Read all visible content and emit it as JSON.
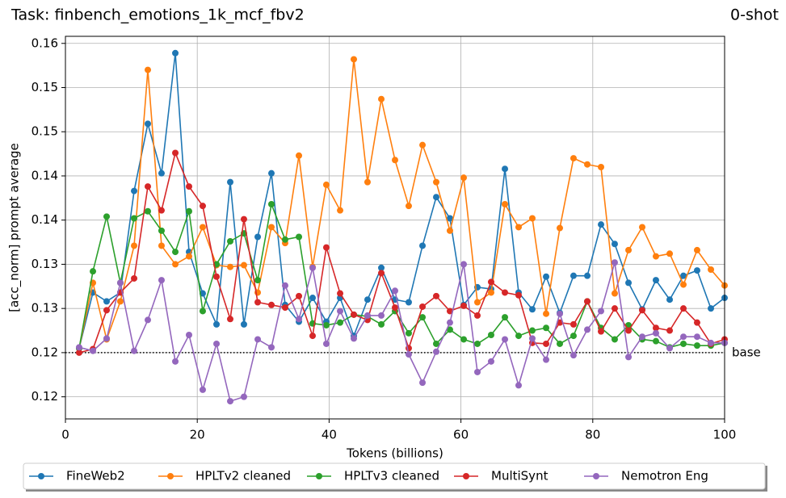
{
  "chart_data": {
    "type": "line",
    "title": "Task: finbench_emotions_1k_mcf_fbv2",
    "subtitle": "0-shot",
    "x_label": "Tokens (billions)",
    "y_label": "[acc_norm] prompt average",
    "x": [
      2.08,
      4.17,
      6.25,
      8.33,
      10.42,
      12.5,
      14.58,
      16.67,
      18.75,
      20.83,
      22.92,
      25,
      27.08,
      29.17,
      31.25,
      33.33,
      35.42,
      37.5,
      39.58,
      41.67,
      43.75,
      45.83,
      47.92,
      50,
      52.08,
      54.17,
      56.25,
      58.33,
      60.42,
      62.5,
      64.58,
      66.67,
      68.75,
      70.83,
      72.92,
      75,
      77.08,
      79.17,
      81.25,
      83.33,
      85.42,
      87.5,
      89.58,
      91.67,
      93.75,
      95.83,
      97.92,
      100
    ],
    "series": [
      {
        "name": "FineWeb2",
        "color": "#1f77b4",
        "values": [
          0.1205,
          0.1268,
          0.1258,
          0.1268,
          0.1383,
          0.1459,
          0.1403,
          0.1539,
          0.1314,
          0.1267,
          0.1232,
          0.1393,
          0.1232,
          0.1331,
          0.1403,
          0.1254,
          0.1235,
          0.1262,
          0.1235,
          0.1262,
          0.1219,
          0.126,
          0.1296,
          0.126,
          0.1257,
          0.1321,
          0.1376,
          0.1352,
          0.1254,
          0.1274,
          0.1272,
          0.1408,
          0.1268,
          0.1249,
          0.1286,
          0.1245,
          0.1287,
          0.1287,
          0.1345,
          0.1323,
          0.1279,
          0.1249,
          0.1282,
          0.126,
          0.1287,
          0.1293,
          0.125,
          0.1262
        ]
      },
      {
        "name": "HPLTv2 cleaned",
        "color": "#ff7f0e",
        "values": [
          0.1205,
          0.1279,
          0.1215,
          0.1258,
          0.1321,
          0.152,
          0.1321,
          0.13,
          0.1309,
          0.1342,
          0.1299,
          0.1297,
          0.1299,
          0.1268,
          0.1342,
          0.1324,
          0.1423,
          0.1297,
          0.139,
          0.1361,
          0.1532,
          0.1393,
          0.1487,
          0.1418,
          0.1366,
          0.1435,
          0.1393,
          0.1338,
          0.1398,
          0.1257,
          0.1268,
          0.1368,
          0.1342,
          0.1352,
          0.1244,
          0.1341,
          0.142,
          0.1413,
          0.141,
          0.1267,
          0.1316,
          0.1342,
          0.1309,
          0.1312,
          0.1277,
          0.1316,
          0.1294,
          0.1276
        ]
      },
      {
        "name": "HPLTv3 cleaned",
        "color": "#2ca02c",
        "values": [
          0.1205,
          0.1292,
          0.1354,
          0.1279,
          0.1352,
          0.136,
          0.1338,
          0.1314,
          0.136,
          0.1247,
          0.13,
          0.1326,
          0.1335,
          0.1282,
          0.1368,
          0.1328,
          0.1331,
          0.1233,
          0.1231,
          0.1234,
          0.1243,
          0.1241,
          0.1232,
          0.1247,
          0.1222,
          0.124,
          0.121,
          0.1226,
          0.1215,
          0.121,
          0.122,
          0.124,
          0.1219,
          0.1225,
          0.1228,
          0.121,
          0.1219,
          0.1258,
          0.1228,
          0.1215,
          0.1231,
          0.1215,
          0.1213,
          0.1206,
          0.121,
          0.1208,
          0.1208,
          0.1211
        ]
      },
      {
        "name": "MultiSynt",
        "color": "#d62728",
        "values": [
          0.12,
          0.1204,
          0.1248,
          0.1268,
          0.1284,
          0.1388,
          0.1361,
          0.1426,
          0.1388,
          0.1366,
          0.1286,
          0.1238,
          0.1351,
          0.1257,
          0.1254,
          0.1251,
          0.1264,
          0.1219,
          0.1319,
          0.1267,
          0.1243,
          0.1237,
          0.129,
          0.1251,
          0.1205,
          0.1252,
          0.1264,
          0.1247,
          0.1253,
          0.1242,
          0.128,
          0.1268,
          0.1265,
          0.1211,
          0.121,
          0.1234,
          0.1232,
          0.1258,
          0.1224,
          0.125,
          0.1225,
          0.1248,
          0.1228,
          0.1225,
          0.125,
          0.1234,
          0.121,
          0.1215
        ]
      },
      {
        "name": "Nemotron Eng",
        "color": "#9467bd",
        "values": [
          0.1206,
          0.1202,
          0.1216,
          0.1279,
          0.1202,
          0.1237,
          0.1282,
          0.119,
          0.122,
          0.1158,
          0.121,
          0.1145,
          0.115,
          0.1215,
          0.1206,
          0.1276,
          0.1238,
          0.1296,
          0.121,
          0.1247,
          0.1216,
          0.1242,
          0.1242,
          0.127,
          0.1198,
          0.1166,
          0.1201,
          0.1234,
          0.13,
          0.1178,
          0.119,
          0.1215,
          0.1163,
          0.1216,
          0.1192,
          0.1244,
          0.1197,
          0.1226,
          0.1247,
          0.1302,
          0.1195,
          0.1218,
          0.1222,
          0.1205,
          0.1218,
          0.1218,
          0.1211,
          0.1211
        ]
      }
    ],
    "baseline": {
      "value": 0.12,
      "label": "base"
    },
    "xlim": [
      0,
      100
    ],
    "xticks": [
      0,
      20,
      40,
      60,
      80,
      100
    ],
    "ylim": [
      0.1125,
      0.1558
    ],
    "yticks": [
      {
        "value": 0.115,
        "label": "0.12"
      },
      {
        "value": 0.12,
        "label": "0.12"
      },
      {
        "value": 0.125,
        "label": "0.13"
      },
      {
        "value": 0.13,
        "label": "0.13"
      },
      {
        "value": 0.135,
        "label": "0.14"
      },
      {
        "value": 0.14,
        "label": "0.14"
      },
      {
        "value": 0.145,
        "label": "0.15"
      },
      {
        "value": 0.15,
        "label": "0.15"
      },
      {
        "value": 0.155,
        "label": "0.16"
      }
    ],
    "grid": true,
    "legend": "bottom"
  }
}
